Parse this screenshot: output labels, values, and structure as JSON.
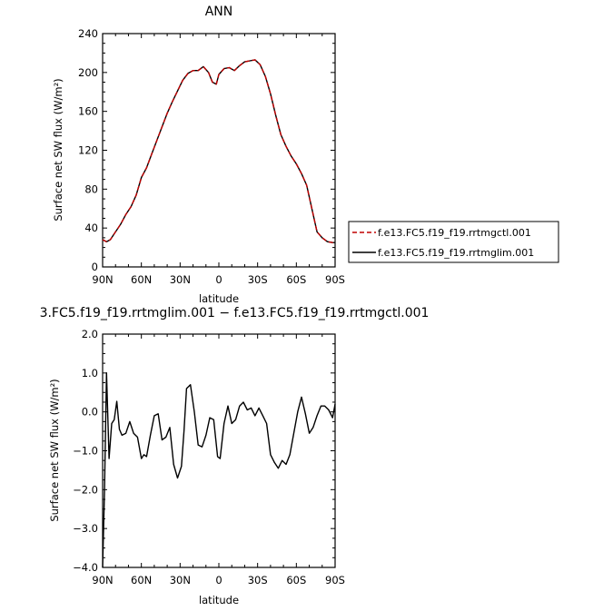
{
  "colors": {
    "ctl": "#c00000",
    "lim": "#000000",
    "axis": "#000000",
    "background": "#ffffff"
  },
  "chart_data": [
    {
      "type": "line",
      "title": "ANN",
      "xlabel": "latitude",
      "ylabel": "Surface net SW flux (W/m²)",
      "xlim": [
        90,
        -90
      ],
      "ylim": [
        0,
        240
      ],
      "xticks": [
        90,
        60,
        30,
        0,
        -30,
        -60,
        -90
      ],
      "xtick_labels": [
        "90N",
        "60N",
        "30N",
        "0",
        "30S",
        "60S",
        "90S"
      ],
      "yticks": [
        0,
        40,
        80,
        120,
        160,
        200,
        240
      ],
      "ytick_labels": [
        "0",
        "40",
        "80",
        "120",
        "160",
        "200",
        "240"
      ],
      "grid": false,
      "legend_position": "right",
      "series": [
        {
          "name": "f.e13.FC5.f19_f19.rrtmgctl.001",
          "style": "dashed",
          "color": "#c00000",
          "x": [
            90,
            87,
            84,
            80,
            76,
            72,
            68,
            64,
            60,
            56,
            52,
            48,
            44,
            40,
            36,
            32,
            28,
            24,
            20,
            16,
            12,
            8,
            5,
            2,
            0,
            -4,
            -8,
            -12,
            -16,
            -20,
            -24,
            -28,
            -32,
            -36,
            -40,
            -44,
            -48,
            -52,
            -56,
            -60,
            -64,
            -68,
            -72,
            -76,
            -80,
            -84,
            -88,
            -90
          ],
          "y": [
            28,
            26,
            28,
            36,
            44,
            54,
            62,
            74,
            92,
            102,
            116,
            130,
            144,
            158,
            170,
            181,
            192,
            199,
            202,
            202,
            206,
            200,
            190,
            188,
            198,
            204,
            205,
            202,
            207,
            211,
            212,
            213,
            208,
            196,
            178,
            156,
            136,
            124,
            114,
            106,
            96,
            84,
            60,
            36,
            30,
            26,
            25,
            25
          ]
        },
        {
          "name": "f.e13.FC5.f19_f19.rrtmglim.001",
          "style": "solid",
          "color": "#000000",
          "x": [
            90,
            87,
            84,
            80,
            76,
            72,
            68,
            64,
            60,
            56,
            52,
            48,
            44,
            40,
            36,
            32,
            28,
            24,
            20,
            16,
            12,
            8,
            5,
            2,
            0,
            -4,
            -8,
            -12,
            -16,
            -20,
            -24,
            -28,
            -32,
            -36,
            -40,
            -44,
            -48,
            -52,
            -56,
            -60,
            -64,
            -68,
            -72,
            -76,
            -80,
            -84,
            -88,
            -90
          ],
          "y": [
            28,
            26,
            28,
            36,
            44,
            54,
            62,
            74,
            92,
            102,
            116,
            130,
            144,
            158,
            170,
            181,
            192,
            199,
            202,
            202,
            206,
            200,
            190,
            188,
            198,
            204,
            205,
            202,
            207,
            211,
            212,
            213,
            208,
            196,
            178,
            156,
            136,
            124,
            114,
            106,
            96,
            84,
            60,
            36,
            30,
            26,
            25,
            25
          ]
        }
      ]
    },
    {
      "type": "line",
      "title": "3.FC5.f19_f19.rrtmglim.001 − f.e13.FC5.f19_f19.rrtmgctl.001",
      "xlabel": "latitude",
      "ylabel": "Surface net SW flux (W/m²)",
      "xlim": [
        90,
        -90
      ],
      "ylim": [
        -4,
        2
      ],
      "xticks": [
        90,
        60,
        30,
        0,
        -30,
        -60,
        -90
      ],
      "xtick_labels": [
        "90N",
        "60N",
        "30N",
        "0",
        "30S",
        "60S",
        "90S"
      ],
      "yticks": [
        -4,
        -3,
        -2,
        -1,
        0,
        1,
        2
      ],
      "ytick_labels": [
        "−4.0",
        "−3.0",
        "−2.0",
        "−1.0",
        "0.0",
        "1.0",
        "2.0"
      ],
      "grid": false,
      "series": [
        {
          "style": "solid",
          "color": "#000000",
          "x": [
            90,
            88.5,
            87,
            85,
            83,
            81,
            79,
            77,
            75,
            72,
            69,
            66,
            63,
            60,
            58,
            56,
            53,
            50,
            47,
            44,
            41,
            38,
            35,
            32,
            29,
            27,
            25,
            22,
            19,
            16,
            13,
            10,
            7,
            4,
            1,
            -1,
            -4,
            -7,
            -10,
            -13,
            -16,
            -19,
            -22,
            -25,
            -28,
            -31,
            -34,
            -37,
            -40,
            -43,
            -46,
            -49,
            -52,
            -55,
            -58,
            -61,
            -64,
            -67,
            -70,
            -73,
            -76,
            -79,
            -82,
            -85,
            -88,
            -90
          ],
          "y": [
            -4.0,
            -2.0,
            1.0,
            -1.2,
            -0.3,
            -0.2,
            0.27,
            -0.45,
            -0.6,
            -0.55,
            -0.25,
            -0.55,
            -0.65,
            -1.2,
            -1.1,
            -1.15,
            -0.6,
            -0.1,
            -0.05,
            -0.72,
            -0.65,
            -0.4,
            -1.35,
            -1.7,
            -1.4,
            -0.5,
            0.6,
            0.7,
            0.0,
            -0.85,
            -0.9,
            -0.6,
            -0.15,
            -0.2,
            -1.15,
            -1.2,
            -0.3,
            0.15,
            -0.3,
            -0.2,
            0.15,
            0.25,
            0.05,
            0.1,
            -0.1,
            0.1,
            -0.1,
            -0.3,
            -1.1,
            -1.3,
            -1.45,
            -1.25,
            -1.35,
            -1.1,
            -0.55,
            0.0,
            0.38,
            -0.05,
            -0.55,
            -0.4,
            -0.1,
            0.15,
            0.15,
            0.05,
            -0.15,
            0.2
          ]
        }
      ]
    }
  ]
}
